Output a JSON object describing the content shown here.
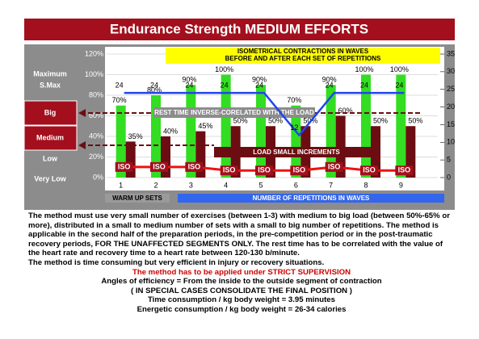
{
  "chart_data": {
    "type": "bar",
    "title": "Endurance Strength MEDIUM EFFORTS",
    "left_labels": [
      "Maximum",
      "S.Max",
      "Big",
      "Medium",
      "Low",
      "Very Low"
    ],
    "categories": [
      "1",
      "2",
      "3",
      "4",
      "5",
      "6",
      "7",
      "8",
      "9"
    ],
    "series": [
      {
        "color": "#33dd22",
        "values": [
          70,
          80,
          90,
          100,
          90,
          70,
          90,
          100,
          100
        ],
        "value_labels": [
          "70%",
          "80%",
          "90%",
          "100%",
          "90%",
          "70%",
          "90%",
          "100%",
          "100%"
        ]
      },
      {
        "color": "#6b0d12",
        "values": [
          35,
          40,
          45,
          50,
          50,
          50,
          60,
          50,
          50
        ],
        "value_labels": [
          "35%",
          "40%",
          "45%",
          "50%",
          "50%",
          "50%",
          "60%",
          "50%",
          "50%"
        ]
      },
      {
        "type": "line",
        "axis": "y2",
        "color": "#2244ee",
        "values": [
          24,
          24,
          24,
          24,
          24,
          12,
          24,
          24,
          24
        ]
      },
      {
        "type": "line",
        "axis": "y2",
        "color": "#ee1111",
        "values": [
          3,
          3,
          3,
          2,
          2,
          2,
          3,
          2,
          2
        ]
      }
    ],
    "iso_label": "ISO",
    "ylim": [
      0,
      120
    ],
    "yticks": [
      {
        "value": 0,
        "label": "0%"
      },
      {
        "value": 20,
        "label": "20%"
      },
      {
        "value": 40,
        "label": "40%"
      },
      {
        "value": 60,
        "label": "60%"
      },
      {
        "value": 80,
        "label": "80%"
      },
      {
        "value": 100,
        "label": "100%"
      },
      {
        "value": 120,
        "label": "120%"
      }
    ],
    "y2lim": [
      0,
      35
    ],
    "y2ticks": [
      0,
      5,
      10,
      15,
      20,
      25,
      30,
      35
    ],
    "grid": true,
    "annotations": {
      "iso_title": "ISOMETRICAL CONTRACTIONS IN WAVES",
      "iso_subtitle": "BEFORE AND AFTER EACH SET OF REPETITIONS",
      "rest": "REST TIME INVERSE-CORELATED WITH THE LOAD",
      "load": "LOAD SMALL  INCREMENTS",
      "warmup": "WARM UP SETS",
      "reps": "NUMBER OF REPETITIONS IN WAVES"
    }
  },
  "text": {
    "paragraph": "The method must use very small number of exercises (between 1-3) with medium to big load (between 50%-65% or more), distributed in a small to medium number of sets with a small to big number of repetitions. The method is applicable in the second half of the preparation periods, in the pre-competition period or in the post-traumatic recovery periods, FOR THE UNAFFECTED SEGMENTS ONLY. The rest time has to be correlated with the value of the heart rate and recovery time to a heart rate between 120-130 b/minute.",
    "paragraph2": " The method is time consuming but very efficient in injury or recovery situations.",
    "supervision": "The method has to be applied under  STRICT SUPERVISION",
    "lines": [
      "Angles of efficiency =  From the inside to the outside segment of contraction",
      "( IN SPECIAL CASES CONSOLIDATE THE FINAL POSITION )",
      "Time consumption /  kg body weight  =  3.95  minutes",
      "Energetic consumption /  kg body weight =  26-34 calories"
    ]
  }
}
